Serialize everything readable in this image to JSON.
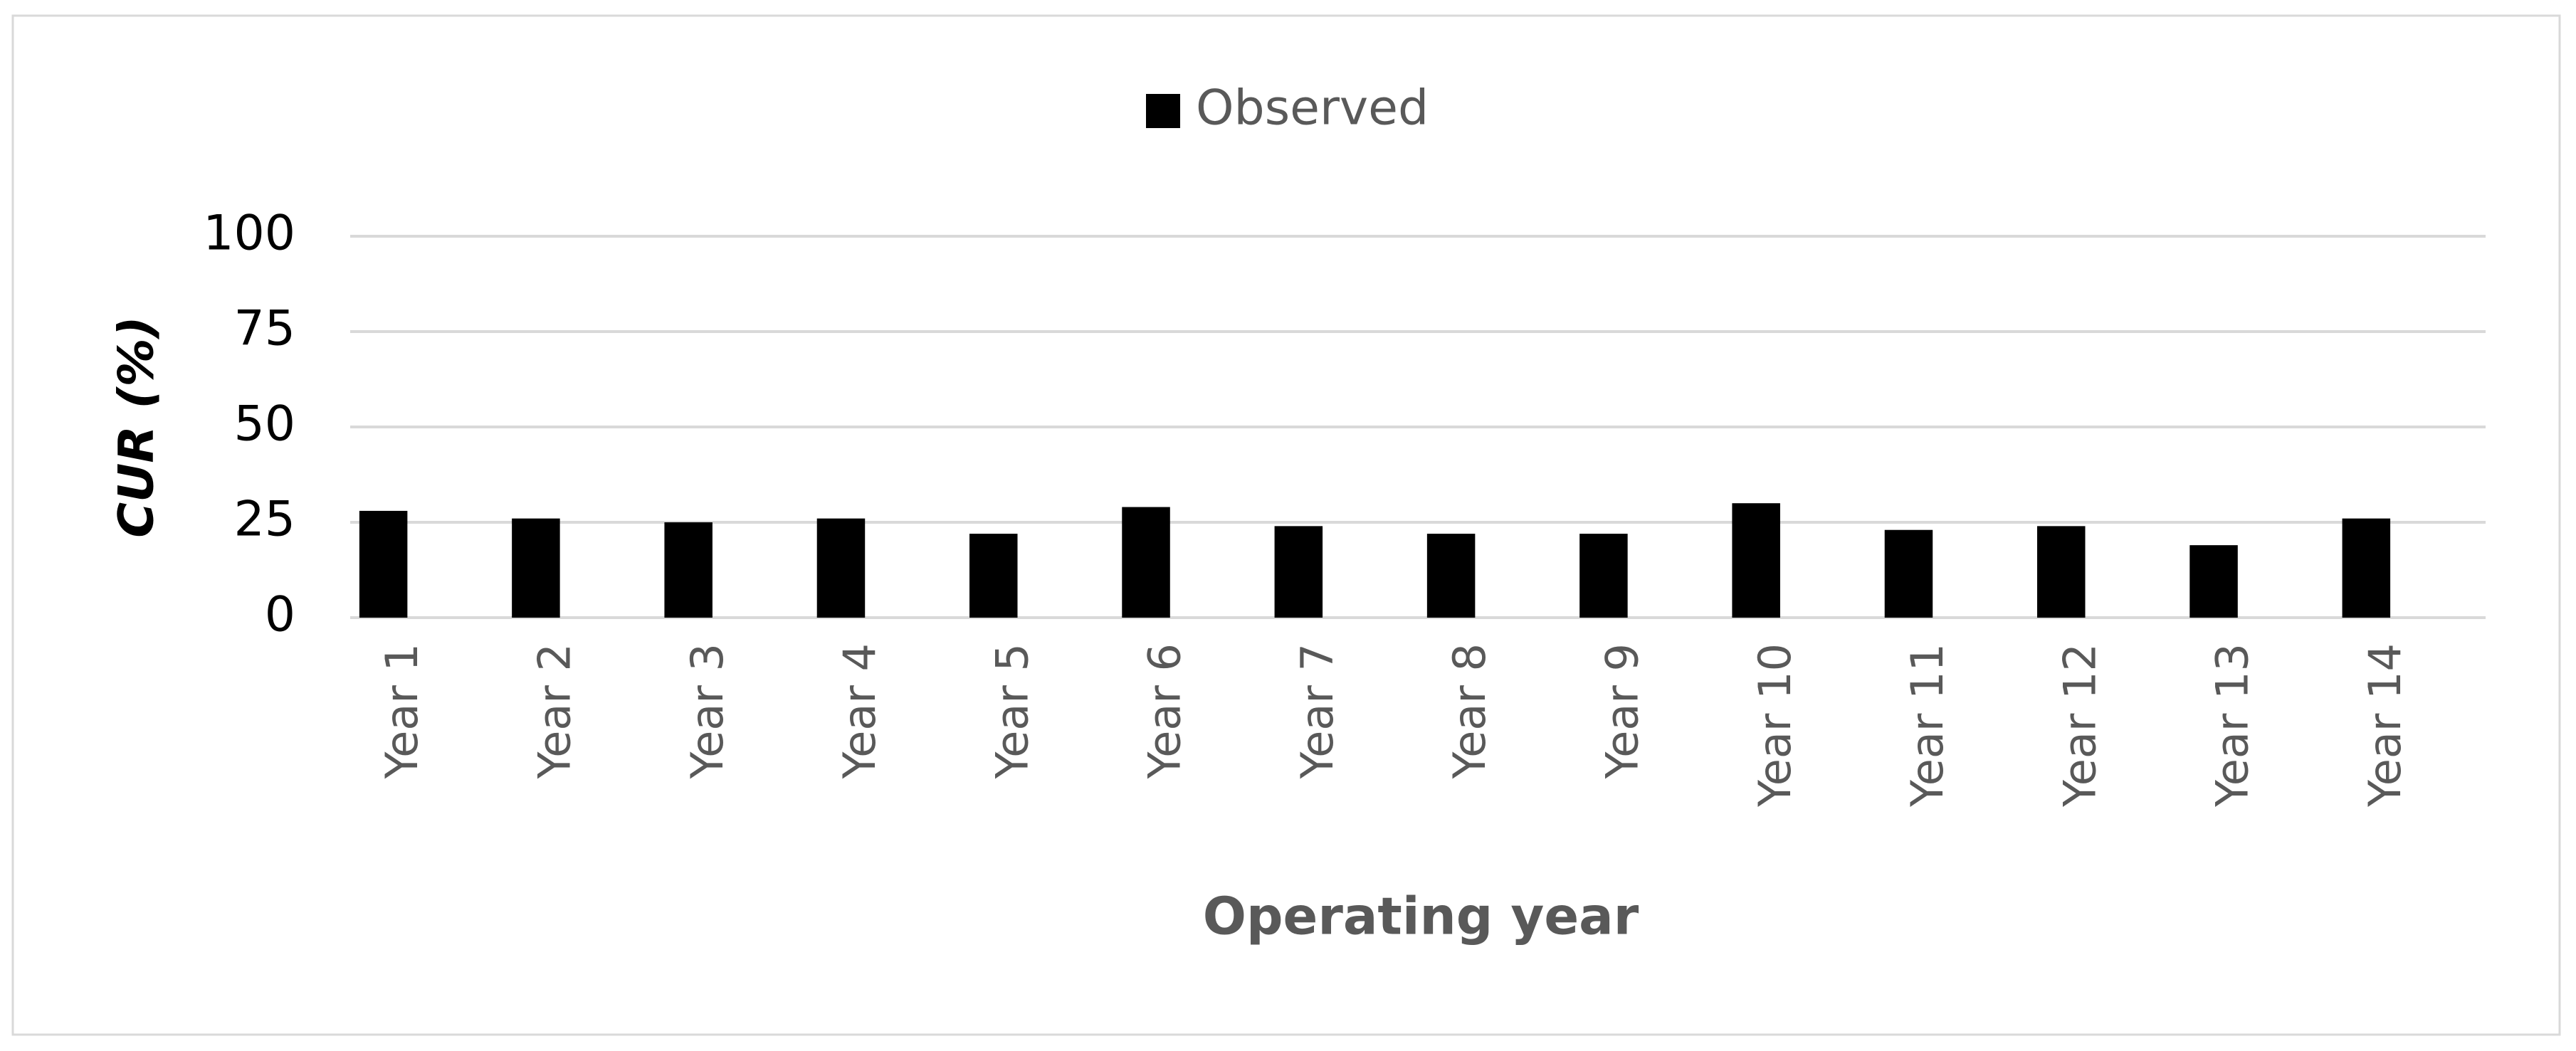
{
  "chart_data": {
    "type": "bar",
    "legend": "Observed",
    "legend_position": "top",
    "x_label": "Operating year",
    "y_label": "CUR (%)",
    "categories": [
      "Year 1",
      "Year 2",
      "Year 3",
      "Year 4",
      "Year 5",
      "Year 6",
      "Year 7",
      "Year 8",
      "Year 9",
      "Year 10",
      "Year 11",
      "Year 12",
      "Year 13",
      "Year 14"
    ],
    "values": [
      28,
      26,
      25,
      26,
      22,
      29,
      24,
      22,
      22,
      30,
      23,
      24,
      19,
      26
    ],
    "color": "#000000",
    "ylim": [
      0,
      100
    ],
    "yticks": [
      0,
      25,
      50,
      75,
      100
    ],
    "grid": true
  }
}
